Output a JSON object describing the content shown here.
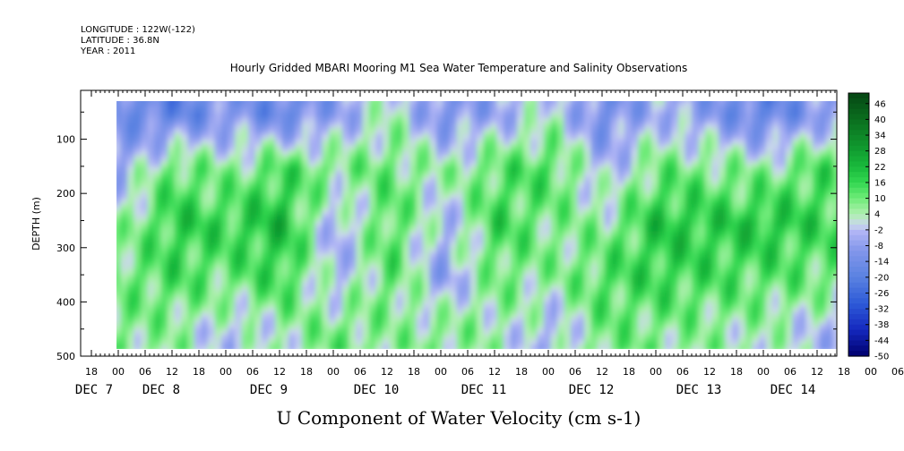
{
  "header": {
    "longitude": "LONGITUDE : 122W(-122)",
    "latitude": "LATITUDE : 36.8N",
    "year": "YEAR : 2011"
  },
  "chart_data": {
    "type": "heatmap",
    "title": "Hourly Gridded MBARI Mooring M1 Sea Water Temperature and Salinity Observations",
    "variable_label": "U Component of Water Velocity (cm s-1)",
    "ylabel": "DEPTH (m)",
    "y_ticks": [
      100,
      200,
      300,
      400,
      500
    ],
    "ylim": [
      500,
      10
    ],
    "data_depth_range": [
      20,
      485
    ],
    "x_hour_ticks": [
      "18",
      "00",
      "06",
      "12",
      "18",
      "00",
      "06",
      "12",
      "18",
      "00",
      "06",
      "12",
      "18",
      "00",
      "06",
      "12",
      "18",
      "00",
      "06",
      "12",
      "18",
      "00",
      "06",
      "12",
      "18",
      "00",
      "06",
      "12",
      "18",
      "00",
      "06",
      "12"
    ],
    "x_day_labels": [
      "DEC 7",
      "DEC 8",
      "DEC 9",
      "DEC 10",
      "DEC 11",
      "DEC 12",
      "DEC 13",
      "DEC 14"
    ],
    "colorbar": {
      "levels": [
        46,
        40,
        34,
        28,
        22,
        16,
        10,
        4,
        -2,
        -8,
        -14,
        -20,
        -26,
        -32,
        -38,
        -44,
        -50
      ],
      "range": [
        -50,
        50
      ]
    },
    "sample_profile": {
      "hours_from_dec7_00": [
        0,
        12,
        24,
        36,
        48,
        60,
        72,
        84,
        96,
        108,
        120,
        132,
        144,
        156,
        168,
        180
      ],
      "depths": [
        50,
        150,
        250,
        350,
        450
      ],
      "u": [
        [
          -14,
          -6,
          4,
          10,
          8
        ],
        [
          -18,
          12,
          18,
          14,
          6
        ],
        [
          -10,
          6,
          16,
          10,
          -2
        ],
        [
          -16,
          14,
          22,
          16,
          4
        ],
        [
          -8,
          8,
          -6,
          -4,
          10
        ],
        [
          4,
          10,
          14,
          12,
          6
        ],
        [
          -12,
          4,
          -4,
          -8,
          8
        ],
        [
          -6,
          12,
          16,
          10,
          4
        ],
        [
          2,
          14,
          8,
          6,
          -4
        ],
        [
          -14,
          -4,
          6,
          14,
          10
        ],
        [
          -4,
          10,
          20,
          16,
          8
        ],
        [
          -10,
          8,
          18,
          14,
          6
        ],
        [
          -18,
          6,
          20,
          12,
          4
        ],
        [
          -8,
          14,
          16,
          10,
          -2
        ],
        [
          -12,
          4,
          10,
          8,
          -6
        ],
        [
          -6,
          16,
          10,
          6,
          4
        ]
      ]
    }
  }
}
